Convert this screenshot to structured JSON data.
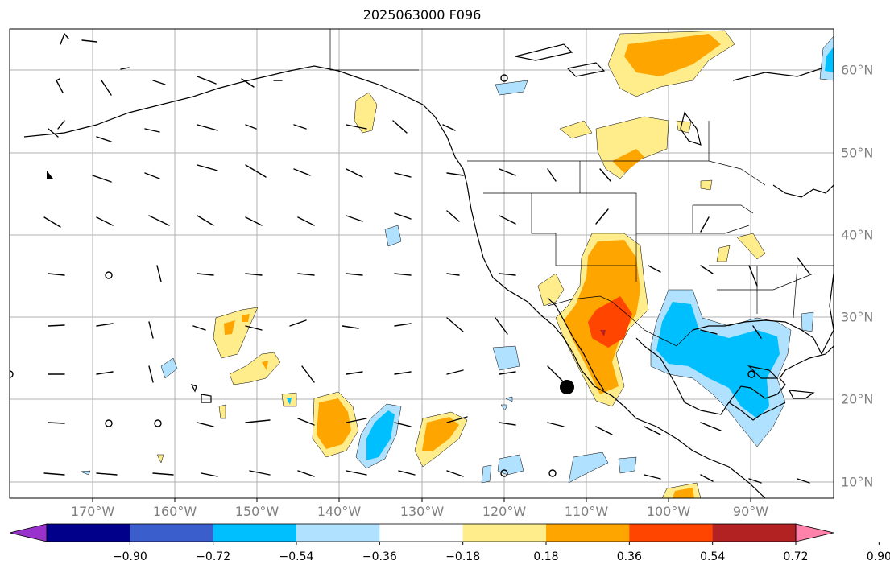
{
  "title": "2025063000 F096",
  "map": {
    "projection": "PlateCarree",
    "lon_range": [
      -180,
      -79
    ],
    "lat_range": [
      8,
      65
    ],
    "lon_ticks": [
      "170°W",
      "160°W",
      "150°W",
      "140°W",
      "130°W",
      "120°W",
      "110°W",
      "100°W",
      "90°W"
    ],
    "lat_ticks": [
      "10°N",
      "20°N",
      "30°N",
      "40°N",
      "50°N",
      "60°N"
    ],
    "gridlines": true,
    "features": [
      "coastlines",
      "country-borders",
      "state-borders",
      "wind-barbs",
      "filled-contours",
      "marker-dot"
    ]
  },
  "colorbar": {
    "levels": [
      -0.9,
      -0.72,
      -0.54,
      -0.36,
      -0.18,
      0.18,
      0.36,
      0.54,
      0.72,
      0.9
    ],
    "tick_labels": [
      "−0.90",
      "−0.72",
      "−0.54",
      "−0.36",
      "−0.18",
      "0.18",
      "0.36",
      "0.54",
      "0.72",
      "0.90"
    ],
    "colors": [
      "#9932cc",
      "#00008b",
      "#3a5fcd",
      "#00bfff",
      "#b0e2ff",
      "#ffffff",
      "#ffec8b",
      "#ffa500",
      "#ff4500",
      "#b22222",
      "#ff82ab"
    ],
    "extend": "both"
  },
  "colors": {
    "grid": "#b0b0b0",
    "coast": "#000000",
    "label": "#7f7f7f"
  }
}
